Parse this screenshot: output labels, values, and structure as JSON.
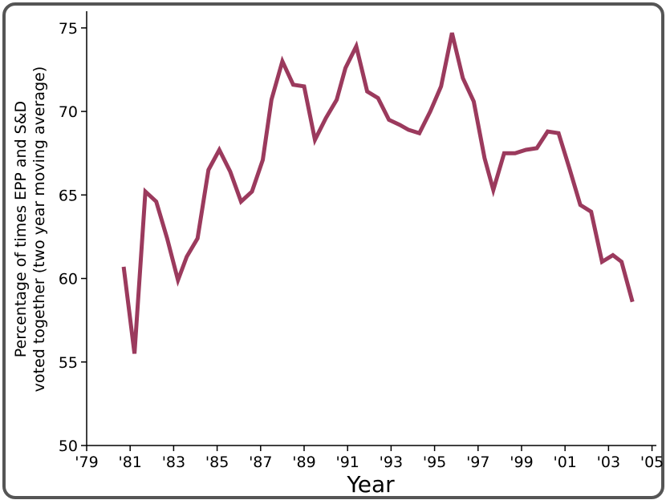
{
  "chart_data": {
    "type": "line",
    "title": "",
    "xlabel": "Year",
    "ylabel_lines": [
      "Percentage of times EPP and S&D",
      "voted together (two year moving average)"
    ],
    "xlim": [
      1979,
      2005.2
    ],
    "ylim": [
      50,
      76
    ],
    "x_ticks": [
      1979,
      1981,
      1983,
      1985,
      1987,
      1989,
      1991,
      1993,
      1995,
      1997,
      1999,
      2001,
      2003,
      2005
    ],
    "x_tick_labels": [
      "'79",
      "'81",
      "'83",
      "'85",
      "'87",
      "'89",
      "'91",
      "'93",
      "'95",
      "'97",
      "'99",
      "'01",
      "'03",
      "'05"
    ],
    "y_ticks": [
      50,
      55,
      60,
      65,
      70,
      75
    ],
    "y_tick_labels": [
      "50",
      "55",
      "60",
      "65",
      "70",
      "75"
    ],
    "line_color": "#9b3a5d",
    "grid": false,
    "series": [
      {
        "x": [
          1980.7,
          1981.2,
          1981.7,
          1982.2,
          1982.7,
          1983.2,
          1983.6,
          1984.1,
          1984.6,
          1985.1,
          1985.6,
          1986.1,
          1986.6,
          1987.1,
          1987.5,
          1988.0,
          1988.5,
          1989.0,
          1989.5,
          1990.0,
          1990.5,
          1990.9,
          1991.4,
          1991.9,
          1992.4,
          1992.9,
          1993.4,
          1993.8,
          1994.3,
          1994.8,
          1995.3,
          1995.8,
          1996.3,
          1996.8,
          1997.3,
          1997.7,
          1998.2,
          1998.7,
          1999.2,
          1999.7,
          2000.2,
          2000.7,
          2001.2,
          2001.7,
          2002.2,
          2002.7,
          2003.2,
          2003.6,
          2004.1
        ],
        "values": [
          60.7,
          55.5,
          65.2,
          64.6,
          62.4,
          59.9,
          61.3,
          62.4,
          66.5,
          67.7,
          66.4,
          64.6,
          65.2,
          67.1,
          70.7,
          73.0,
          71.6,
          71.5,
          68.3,
          69.6,
          70.7,
          72.6,
          73.9,
          71.2,
          70.8,
          69.5,
          69.2,
          68.9,
          68.7,
          70.0,
          71.5,
          74.7,
          72.0,
          70.6,
          67.2,
          65.3,
          67.5,
          67.5,
          67.7,
          67.8,
          68.8,
          68.7,
          66.6,
          64.4,
          64.0,
          61.0,
          61.4,
          61.0,
          58.6
        ]
      }
    ]
  }
}
